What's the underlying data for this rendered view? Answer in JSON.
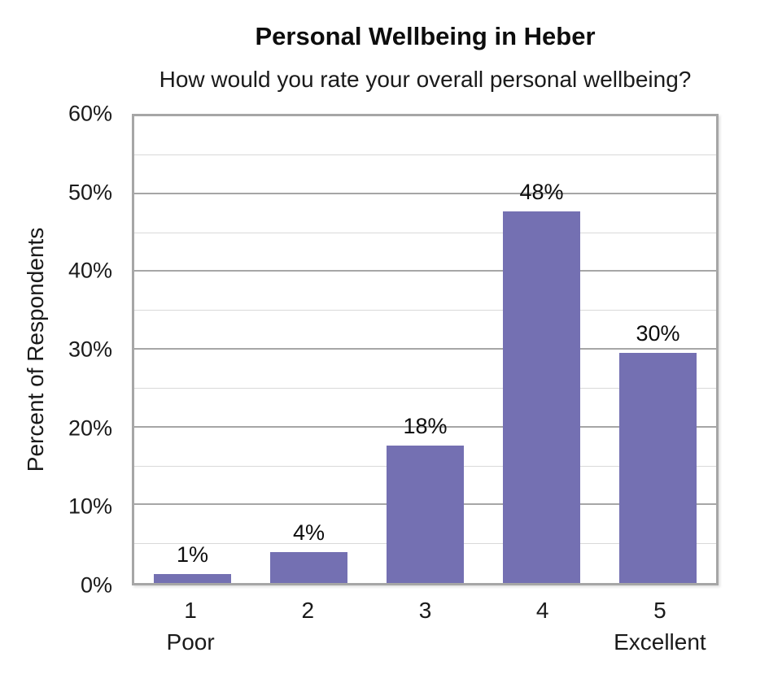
{
  "chart_data": {
    "type": "bar",
    "title": "Personal Wellbeing in Heber",
    "subtitle": "How would you rate your overall personal wellbeing?",
    "xlabel": "",
    "ylabel": "Percent of Respondents",
    "categories": [
      "1",
      "2",
      "3",
      "4",
      "5"
    ],
    "category_sublabels": [
      "Poor",
      "",
      "",
      "",
      "Excellent"
    ],
    "values": [
      1.2,
      4.0,
      17.7,
      47.8,
      29.6
    ],
    "data_labels": [
      "1%",
      "4%",
      "18%",
      "48%",
      "30%"
    ],
    "ylim": [
      0,
      60
    ],
    "ytick_step_major": 10,
    "ytick_step_minor": 5,
    "ytick_labels": [
      "0%",
      "10%",
      "20%",
      "30%",
      "40%",
      "50%",
      "60%"
    ],
    "grid": "horizontal-major-and-minor",
    "legend": "none",
    "colors": {
      "bar": "#7470B2",
      "gridline_major": "#A6A6A6",
      "gridline_minor": "#D9D9D9",
      "plot_border": "#A6A6A6",
      "text": "#1a1a1a"
    }
  }
}
